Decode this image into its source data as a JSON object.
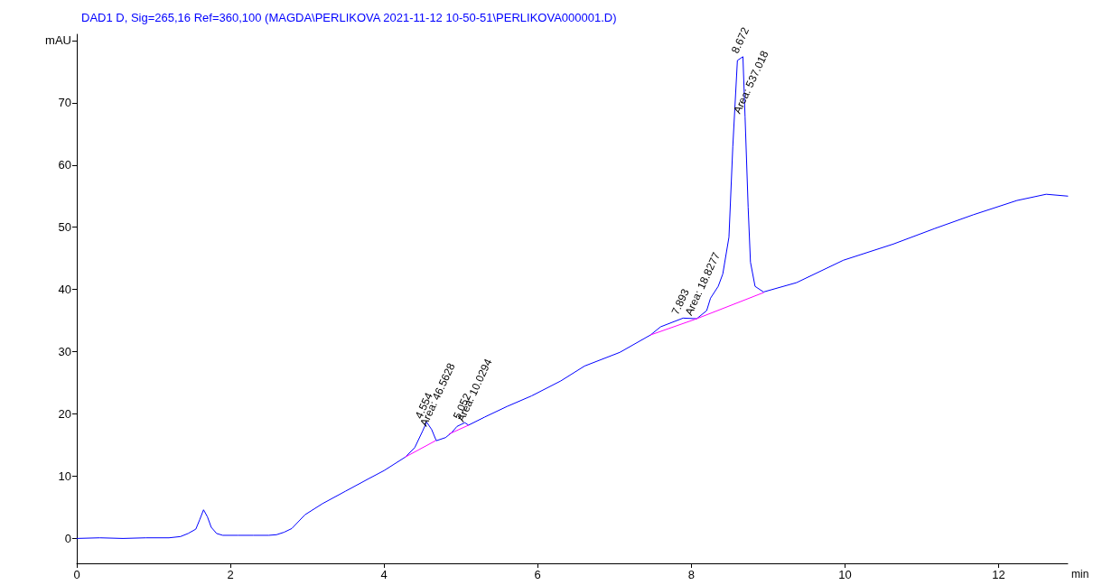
{
  "chart_data": {
    "type": "line",
    "title": "DAD1 D, Sig=265,16 Ref=360,100 (MAGDA\\PERLIKOVA 2021-11-12 10-50-51\\PERLIKOVA000001.D)",
    "xlabel": "min",
    "xlim": [
      0,
      12.9
    ],
    "xticks": [
      0,
      2,
      4,
      6,
      8,
      10,
      12
    ],
    "ylim": [
      -4,
      81
    ],
    "yticks": [
      0,
      10,
      20,
      30,
      40,
      50,
      60,
      70,
      {
        "value": 80,
        "label": "mAU"
      }
    ],
    "grid": false,
    "marker": "none",
    "line_style": "solid",
    "series": [
      {
        "color": "#0000ff",
        "x": [
          0,
          0.3,
          0.6,
          0.9,
          1.2,
          1.35,
          1.45,
          1.55,
          1.6,
          1.65,
          1.7,
          1.75,
          1.82,
          1.9,
          2.1,
          2.3,
          2.5,
          2.6,
          2.7,
          2.8,
          2.97,
          3.2,
          3.5,
          3.8,
          4.0,
          4.28,
          4.4,
          4.5,
          4.554,
          4.62,
          4.68,
          4.8,
          4.88,
          4.95,
          5.052,
          5.1,
          5.31,
          5.6,
          5.92,
          6.3,
          6.61,
          7.07,
          7.47,
          7.6,
          7.893,
          8.07,
          8.2,
          8.25,
          8.35,
          8.41,
          8.49,
          8.54,
          8.6,
          8.672,
          8.7,
          8.74,
          8.77,
          8.83,
          8.94,
          9.37,
          9.98,
          10.63,
          11.17,
          11.67,
          12.24,
          12.62,
          12.9
        ],
        "values": [
          0,
          0.1,
          0,
          0.1,
          0.1,
          0.3,
          0.8,
          1.5,
          3,
          4.6,
          3.5,
          1.8,
          0.8,
          0.5,
          0.5,
          0.5,
          0.5,
          0.6,
          1.0,
          1.6,
          3.8,
          5.6,
          7.6,
          9.6,
          10.9,
          13.1,
          14.6,
          17.2,
          18.7,
          17.5,
          15.7,
          16.2,
          17.0,
          18.0,
          18.6,
          18.2,
          19.5,
          21.2,
          22.9,
          25.3,
          27.7,
          29.9,
          32.7,
          34.0,
          35.4,
          35.3,
          36.6,
          38.6,
          40.5,
          42.5,
          48.4,
          62.9,
          76.8,
          77.4,
          67.7,
          53.2,
          44.4,
          40.5,
          39.6,
          41.1,
          44.7,
          47.3,
          49.8,
          52.0,
          54.3,
          55.3,
          55.0
        ]
      },
      {
        "color": "#ff00ff",
        "x": [
          4.28,
          4.67,
          4.76,
          4.85,
          5.1,
          5.3,
          7.47,
          8.07,
          8.94
        ],
        "values": [
          13.1,
          15.7,
          null,
          16.8,
          18.2,
          null,
          32.7,
          35.3,
          39.5
        ]
      }
    ],
    "annotations": [
      {
        "text": "4.554",
        "x": 4.554,
        "y": 18.7
      },
      {
        "text": "Area: 46.5628",
        "x": 4.62,
        "y": 17.5
      },
      {
        "text": "5.052",
        "x": 5.052,
        "y": 18.6
      },
      {
        "text": "Area: 10.0294",
        "x": 5.1,
        "y": 18.2
      },
      {
        "text": "7.893",
        "x": 7.893,
        "y": 35.4
      },
      {
        "text": "Area: 18.8277",
        "x": 8.07,
        "y": 35.3
      },
      {
        "text": "8.672",
        "x": 8.672,
        "y": 77.4
      },
      {
        "text": "Area: 537.018",
        "x": 8.7,
        "y": 67.7
      }
    ]
  }
}
